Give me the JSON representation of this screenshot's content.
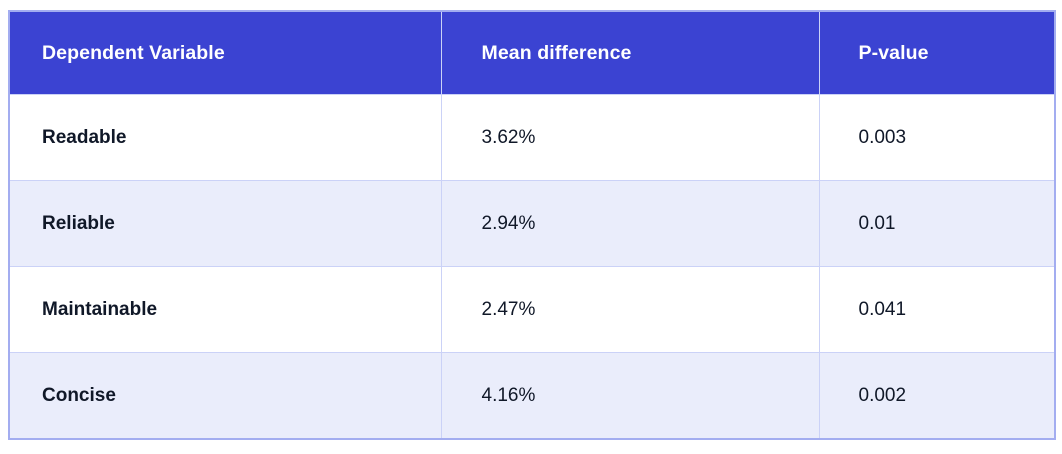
{
  "chart_data": {
    "type": "table",
    "columns": [
      "Dependent Variable",
      "Mean difference",
      "P-value"
    ],
    "rows": [
      [
        "Readable",
        "3.62%",
        "0.003"
      ],
      [
        "Reliable",
        "2.94%",
        "0.01"
      ],
      [
        "Maintainable",
        "2.47%",
        "0.041"
      ],
      [
        "Concise",
        "4.16%",
        "0.002"
      ]
    ],
    "numeric": {
      "mean_difference_pct": [
        3.62,
        2.94,
        2.47,
        4.16
      ],
      "p_values": [
        0.003,
        0.01,
        0.041,
        0.002
      ]
    },
    "layout_hints": {
      "zebra_striping": true,
      "striped_rows": [
        "Reliable",
        "Concise"
      ]
    }
  },
  "colors": {
    "header_bg": "#3B43D2",
    "header_text": "#FFFFFF",
    "body_text": "#101828",
    "row_bg": "#FFFFFF",
    "row_alt_bg": "#EAEDFB",
    "outer_border": "#A3ADF0",
    "inner_border": "#CBD2F7",
    "page_bg": "#FFFFFF"
  }
}
